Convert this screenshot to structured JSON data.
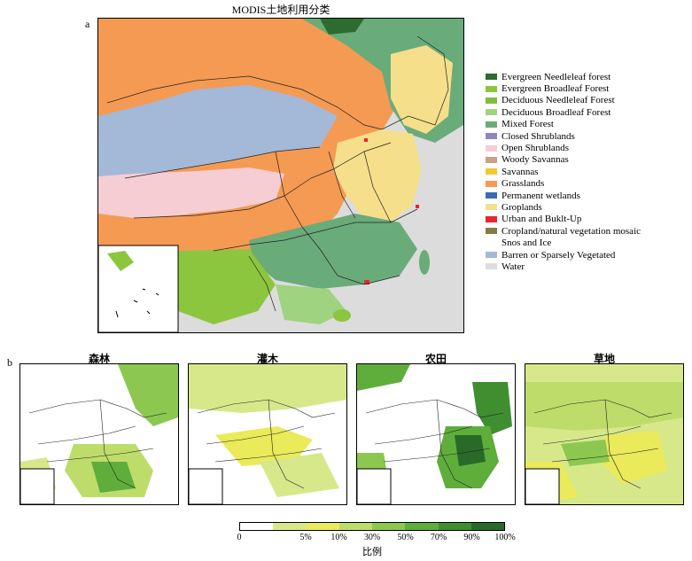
{
  "panel_a": {
    "letter": "a",
    "title": "MODIS土地利用分类"
  },
  "legend": {
    "items": [
      {
        "label": "Evergreen Needleleaf forest",
        "color": "#2e6b2e"
      },
      {
        "label": "Evergreen Broadleaf Forest",
        "color": "#8cc63f"
      },
      {
        "label": "Deciduous Needleleaf Forest",
        "color": "#7fbf3f"
      },
      {
        "label": "Deciduous Broadleaf Forest",
        "color": "#9fd37f"
      },
      {
        "label": "Mixed Forest",
        "color": "#6aab7a"
      },
      {
        "label": "Closed Shrublands",
        "color": "#8e86c2"
      },
      {
        "label": "Open Shrublands",
        "color": "#f6cdd3"
      },
      {
        "label": "Woody Savannas",
        "color": "#c4a484"
      },
      {
        "label": "Savannas",
        "color": "#f0c830"
      },
      {
        "label": "Grasslands",
        "color": "#f59a52"
      },
      {
        "label": "Permanent wetlands",
        "color": "#3a6cb4"
      },
      {
        "label": "Groplands",
        "color": "#f5df8a"
      },
      {
        "label": "Urban and Buklt-Up",
        "color": "#e8262c"
      },
      {
        "label": "Cropland/natural vegetation mosaic",
        "color": "#857a4a"
      },
      {
        "label": "Snos and Ice",
        "color": ""
      },
      {
        "label": "Barren or Sparsely Vegetated",
        "color": "#a4b8d8"
      },
      {
        "label": "Water",
        "color": "#dcdcdc"
      }
    ]
  },
  "panel_b": {
    "letter": "b",
    "maps": [
      {
        "title": "森林"
      },
      {
        "title": "灌木"
      },
      {
        "title": "农田"
      },
      {
        "title": "草地"
      }
    ]
  },
  "colorbar": {
    "colors": [
      "#ffffff",
      "#d7e88a",
      "#eaea5a",
      "#bedc6a",
      "#8cc850",
      "#5fae3c",
      "#3f8f30",
      "#2a6a28"
    ],
    "ticks": [
      "0",
      "5%",
      "10%",
      "30%",
      "50%",
      "70%",
      "90%",
      "100%"
    ],
    "label": "比例"
  }
}
